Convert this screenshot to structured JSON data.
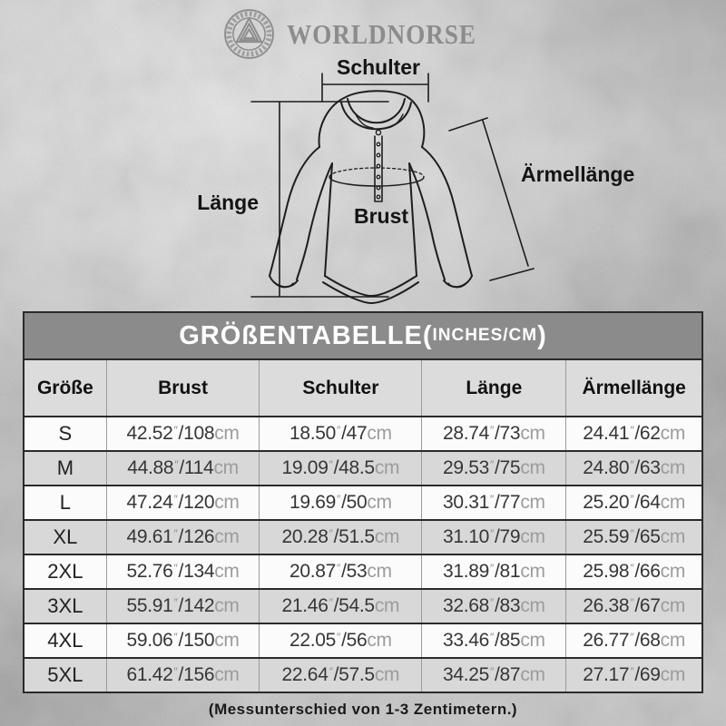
{
  "brand": {
    "name": "WORLDNORSE",
    "logo_icon": "valknut-emblem"
  },
  "diagram": {
    "labels": {
      "shoulder": "Schulter",
      "length": "Länge",
      "chest": "Brust",
      "sleeve": "Ärmellänge"
    }
  },
  "table": {
    "title": {
      "main": "GRÖßENTABELLE(",
      "sub": "INCHES/CM",
      "close": ")"
    },
    "columns": [
      "Größe",
      "Brust",
      "Schulter",
      "Länge",
      "Ärmellänge"
    ],
    "unit_inch_mark": "″",
    "separator": "/",
    "unit_cm": "cm",
    "rows": [
      {
        "size": "S",
        "cells": [
          {
            "in": "42.52",
            "cm": "108"
          },
          {
            "in": "18.50",
            "cm": "47"
          },
          {
            "in": "28.74",
            "cm": "73"
          },
          {
            "in": "24.41",
            "cm": "62"
          }
        ]
      },
      {
        "size": "M",
        "cells": [
          {
            "in": "44.88",
            "cm": "114"
          },
          {
            "in": "19.09",
            "cm": "48.5"
          },
          {
            "in": "29.53",
            "cm": "75"
          },
          {
            "in": "24.80",
            "cm": "63"
          }
        ]
      },
      {
        "size": "L",
        "cells": [
          {
            "in": "47.24",
            "cm": "120"
          },
          {
            "in": "19.69",
            "cm": "50"
          },
          {
            "in": "30.31",
            "cm": "77"
          },
          {
            "in": "25.20",
            "cm": "64"
          }
        ]
      },
      {
        "size": "XL",
        "cells": [
          {
            "in": "49.61",
            "cm": "126"
          },
          {
            "in": "20.28",
            "cm": "51.5"
          },
          {
            "in": "31.10",
            "cm": "79"
          },
          {
            "in": "25.59",
            "cm": "65"
          }
        ]
      },
      {
        "size": "2XL",
        "cells": [
          {
            "in": "52.76",
            "cm": "134"
          },
          {
            "in": "20.87",
            "cm": "53"
          },
          {
            "in": "31.89",
            "cm": "81"
          },
          {
            "in": "25.98",
            "cm": "66"
          }
        ]
      },
      {
        "size": "3XL",
        "cells": [
          {
            "in": "55.91",
            "cm": "142"
          },
          {
            "in": "21.46",
            "cm": "54.5"
          },
          {
            "in": "32.68",
            "cm": "83"
          },
          {
            "in": "26.38",
            "cm": "67"
          }
        ]
      },
      {
        "size": "4XL",
        "cells": [
          {
            "in": "59.06",
            "cm": "150"
          },
          {
            "in": "22.05",
            "cm": "56"
          },
          {
            "in": "33.46",
            "cm": "85"
          },
          {
            "in": "26.77",
            "cm": "68"
          }
        ]
      },
      {
        "size": "5XL",
        "cells": [
          {
            "in": "61.42",
            "cm": "156"
          },
          {
            "in": "22.64",
            "cm": "57.5"
          },
          {
            "in": "34.25",
            "cm": "87"
          },
          {
            "in": "27.17",
            "cm": "69"
          }
        ]
      }
    ]
  },
  "footer": {
    "note": "(Messunterschied von 1-3 Zentimetern.)"
  },
  "colors": {
    "title_bar": "#8b8b8b",
    "header_row": "#dcdcdc",
    "row_alt": "#d8d8d8",
    "row_light": "#fbfbfb",
    "unit_text": "#9c9c9c",
    "line_dark": "#2a2a2a",
    "brand_gray": "#8c8c8c"
  }
}
